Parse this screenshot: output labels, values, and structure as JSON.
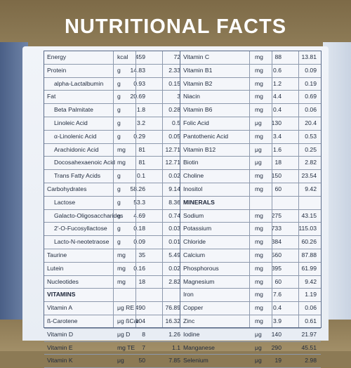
{
  "title": "NUTRITIONAL FACTS",
  "left_rows": [
    {
      "name": "Energy",
      "unit": "kcal",
      "v1": "459",
      "v2": "72",
      "type": "row"
    },
    {
      "name": "Protein",
      "unit": "g",
      "v1": "14.83",
      "v2": "2.33",
      "type": "row"
    },
    {
      "name": "alpha-Lactalbumin",
      "unit": "g",
      "v1": "0.93",
      "v2": "0.15",
      "type": "sub"
    },
    {
      "name": "Fat",
      "unit": "g",
      "v1": "20.69",
      "v2": "3",
      "type": "row"
    },
    {
      "name": "Beta Palmitate",
      "unit": "g",
      "v1": "1.8",
      "v2": "0.28",
      "type": "sub"
    },
    {
      "name": "Linoleic Acid",
      "unit": "g",
      "v1": "3.2",
      "v2": "0.5",
      "type": "sub"
    },
    {
      "name": "α-Linolenic Acid",
      "unit": "g",
      "v1": "0.29",
      "v2": "0.05",
      "type": "sub"
    },
    {
      "name": "Arachidonic Acid",
      "unit": "mg",
      "v1": "81",
      "v2": "12.71",
      "type": "sub"
    },
    {
      "name": "Docosahexaenoic Acid",
      "unit": "mg",
      "v1": "81",
      "v2": "12.71",
      "type": "sub"
    },
    {
      "name": "Trans Fatty Acids",
      "unit": "g",
      "v1": "0.1",
      "v2": "0.02",
      "type": "sub"
    },
    {
      "name": "Carbohydrates",
      "unit": "g",
      "v1": "58.26",
      "v2": "9.14",
      "type": "row"
    },
    {
      "name": "Lactose",
      "unit": "g",
      "v1": "53.3",
      "v2": "8.36",
      "type": "sub"
    },
    {
      "name": "Galacto-Oligosaccharides",
      "unit": "g",
      "v1": "4.69",
      "v2": "0.74",
      "type": "sub"
    },
    {
      "name": "2'-O-Fucosyllactose",
      "unit": "g",
      "v1": "0.18",
      "v2": "0.03",
      "type": "sub"
    },
    {
      "name": "Lacto-N-neotetraose",
      "unit": "g",
      "v1": "0.09",
      "v2": "0.01",
      "type": "sub"
    },
    {
      "name": "Taurine",
      "unit": "mg",
      "v1": "35",
      "v2": "5.49",
      "type": "row"
    },
    {
      "name": "Lutein",
      "unit": "mg",
      "v1": "0.16",
      "v2": "0.02",
      "type": "row"
    },
    {
      "name": "Nucleotides",
      "unit": "mg",
      "v1": "18",
      "v2": "2.82",
      "type": "row"
    },
    {
      "name": "VITAMINS",
      "unit": "",
      "v1": "",
      "v2": "",
      "type": "head"
    },
    {
      "name": "Vitamin A",
      "unit": "μg RE",
      "v1": "490",
      "v2": "76.89",
      "type": "row"
    },
    {
      "name": "ß-Carotene",
      "unit": "μg ßCar",
      "v1": "104",
      "v2": "16.32",
      "type": "row"
    },
    {
      "name": "Vitamin D",
      "unit": "μg D",
      "v1": "8",
      "v2": "1.26",
      "type": "row"
    },
    {
      "name": "Vitamin E",
      "unit": "mg TE",
      "v1": "7",
      "v2": "1.1",
      "type": "row"
    },
    {
      "name": "Vitamin K",
      "unit": "μg",
      "v1": "50",
      "v2": "7.85",
      "type": "row"
    }
  ],
  "right_rows": [
    {
      "name": "Vitamin C",
      "unit": "mg",
      "v1": "88",
      "v2": "13.81",
      "type": "row"
    },
    {
      "name": "Vitamin B1",
      "unit": "mg",
      "v1": "0.6",
      "v2": "0.09",
      "type": "row"
    },
    {
      "name": "Vitamin B2",
      "unit": "mg",
      "v1": "1.2",
      "v2": "0.19",
      "type": "row"
    },
    {
      "name": "Niacin",
      "unit": "mg",
      "v1": "4.4",
      "v2": "0.69",
      "type": "row"
    },
    {
      "name": "Vitamin B6",
      "unit": "mg",
      "v1": "0.4",
      "v2": "0.06",
      "type": "row"
    },
    {
      "name": "Folic Acid",
      "unit": "μg",
      "v1": "130",
      "v2": "20.4",
      "type": "row"
    },
    {
      "name": "Pantothenic Acid",
      "unit": "mg",
      "v1": "3.4",
      "v2": "0.53",
      "type": "row"
    },
    {
      "name": "Vitamin B12",
      "unit": "μg",
      "v1": "1.6",
      "v2": "0.25",
      "type": "row"
    },
    {
      "name": "Biotin",
      "unit": "μg",
      "v1": "18",
      "v2": "2.82",
      "type": "row"
    },
    {
      "name": "Choline",
      "unit": "mg",
      "v1": "150",
      "v2": "23.54",
      "type": "row"
    },
    {
      "name": "Inositol",
      "unit": "mg",
      "v1": "60",
      "v2": "9.42",
      "type": "row"
    },
    {
      "name": "MINERALS",
      "unit": "",
      "v1": "",
      "v2": "",
      "type": "head"
    },
    {
      "name": "Sodium",
      "unit": "mg",
      "v1": "275",
      "v2": "43.15",
      "type": "row"
    },
    {
      "name": "Potassium",
      "unit": "mg",
      "v1": "733",
      "v2": "115.03",
      "type": "row"
    },
    {
      "name": "Chloride",
      "unit": "mg",
      "v1": "384",
      "v2": "60.26",
      "type": "row"
    },
    {
      "name": "Calcium",
      "unit": "mg",
      "v1": "560",
      "v2": "87.88",
      "type": "row"
    },
    {
      "name": "Phosphorous",
      "unit": "mg",
      "v1": "395",
      "v2": "61.99",
      "type": "row"
    },
    {
      "name": "Magnesium",
      "unit": "mg",
      "v1": "60",
      "v2": "9.42",
      "type": "row"
    },
    {
      "name": "Iron",
      "unit": "mg",
      "v1": "7.6",
      "v2": "1.19",
      "type": "row"
    },
    {
      "name": "Copper",
      "unit": "mg",
      "v1": "0.4",
      "v2": "0.06",
      "type": "row"
    },
    {
      "name": "Zinc",
      "unit": "mg",
      "v1": "3.9",
      "v2": "0.61",
      "type": "row"
    },
    {
      "name": "Iodine",
      "unit": "μg",
      "v1": "140",
      "v2": "21.97",
      "type": "row"
    },
    {
      "name": "Manganese",
      "unit": "μg",
      "v1": "290",
      "v2": "45.51",
      "type": "row"
    },
    {
      "name": "Selenium",
      "unit": "μg",
      "v1": "19",
      "v2": "2.98",
      "type": "row"
    }
  ]
}
